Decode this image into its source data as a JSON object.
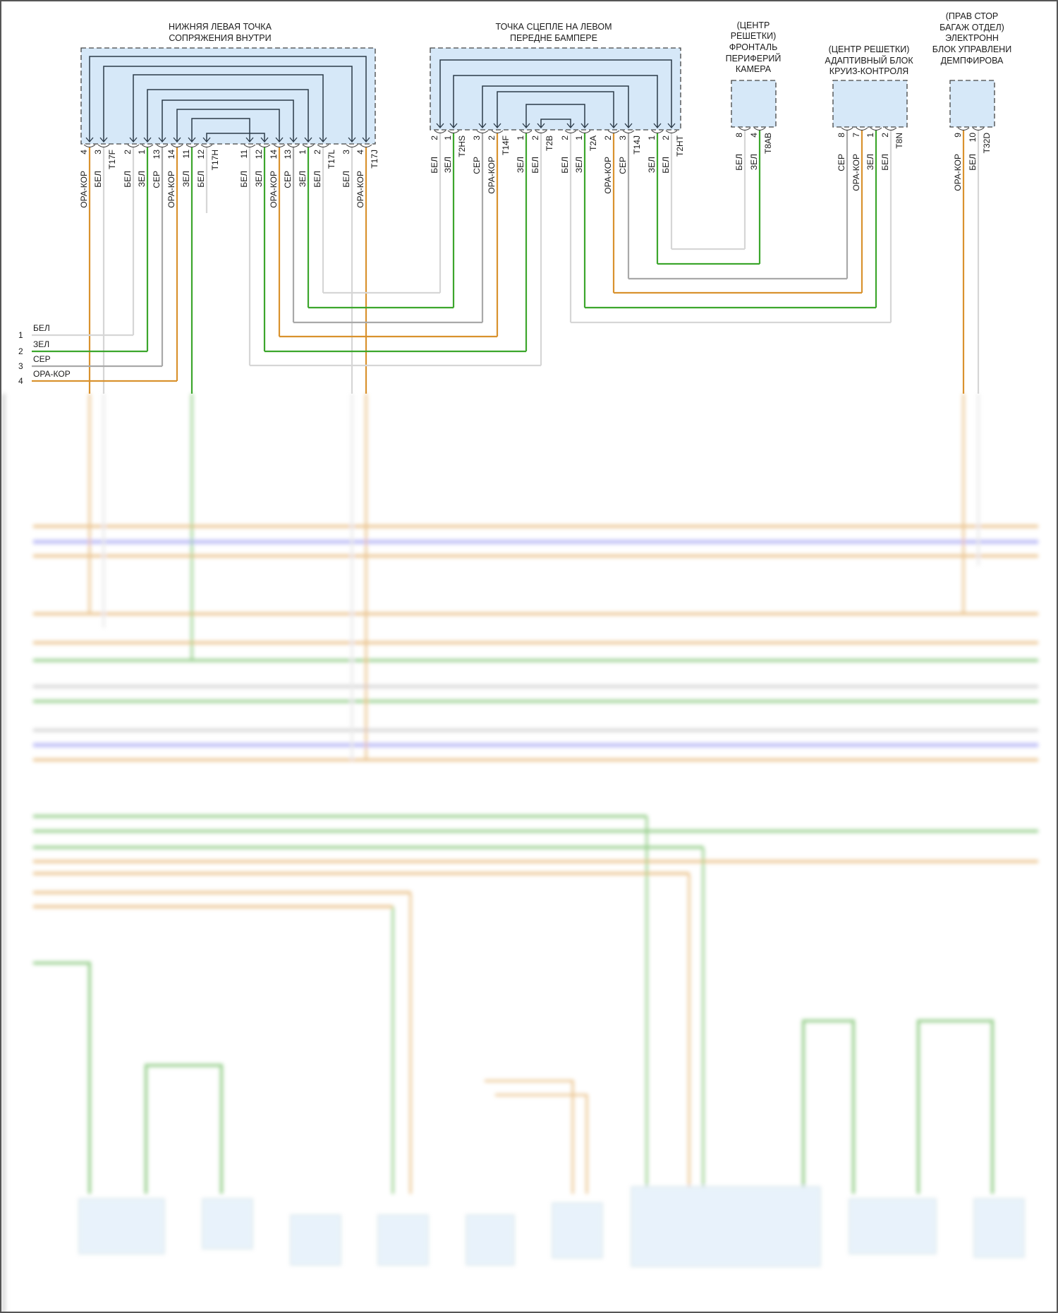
{
  "wire_colors": {
    "ОРА-КОР": "#d9922e",
    "ЗЕЛ": "#3ca62c",
    "БЕЛ": "#d6d6d6",
    "СЕР": "#a9a9a9"
  },
  "box_fill": "#d6e8f8",
  "connectors": [
    {
      "title": [
        "НИЖНЯЯ ЛЕВАЯ ТОЧКА",
        "СОПРЯЖЕНИЯ ВНУТРИ"
      ],
      "pins": [
        {
          "num": "4",
          "wire": "ОРА-КОР"
        },
        {
          "num": "3",
          "wire": "БЕЛ",
          "tag": "T17F"
        },
        {
          "num": "2",
          "wire": "БЕЛ"
        },
        {
          "num": "1",
          "wire": "ЗЕЛ"
        },
        {
          "num": "13",
          "wire": "СЕР"
        },
        {
          "num": "14",
          "wire": "ОРА-КОР"
        },
        {
          "num": "11",
          "wire": "ЗЕЛ"
        },
        {
          "num": "12",
          "wire": "БЕЛ",
          "tag": "T17H"
        },
        {
          "num": "11",
          "wire": "БЕЛ"
        },
        {
          "num": "12",
          "wire": "ЗЕЛ"
        },
        {
          "num": "14",
          "wire": "ОРА-КОР"
        },
        {
          "num": "13",
          "wire": "СЕР"
        },
        {
          "num": "1",
          "wire": "ЗЕЛ"
        },
        {
          "num": "2",
          "wire": "БЕЛ",
          "tag": "T17L"
        },
        {
          "num": "3",
          "wire": "БЕЛ"
        },
        {
          "num": "4",
          "wire": "ОРА-КОР",
          "tag": "T17J"
        }
      ]
    },
    {
      "title": [
        "ТОЧКА СЦЕПЛЕ НА ЛЕВОМ",
        "ПЕРЕДНЕ БАМПЕРЕ"
      ],
      "pins": [
        {
          "num": "2",
          "wire": "БЕЛ"
        },
        {
          "num": "1",
          "wire": "ЗЕЛ",
          "tag": "T2HS"
        },
        {
          "num": "3",
          "wire": "СЕР"
        },
        {
          "num": "2",
          "wire": "ОРА-КОР",
          "tag": "T14F"
        },
        {
          "num": "1",
          "wire": "ЗЕЛ"
        },
        {
          "num": "2",
          "wire": "БЕЛ",
          "tag": "T2B"
        },
        {
          "num": "2",
          "wire": "БЕЛ"
        },
        {
          "num": "1",
          "wire": "ЗЕЛ",
          "tag": "T2A"
        },
        {
          "num": "2",
          "wire": "ОРА-КОР"
        },
        {
          "num": "3",
          "wire": "СЕР",
          "tag": "T14J"
        },
        {
          "num": "1",
          "wire": "ЗЕЛ"
        },
        {
          "num": "2",
          "wire": "БЕЛ",
          "tag": "T2HT"
        }
      ]
    },
    {
      "title": [
        "(ЦЕНТР",
        "РЕШЕТКИ)",
        "ФРОНТАЛЬ",
        "ПЕРИФЕРИЙ",
        "КАМЕРА"
      ],
      "pins": [
        {
          "num": "8",
          "wire": "БЕЛ"
        },
        {
          "num": "4",
          "wire": "ЗЕЛ",
          "tag": "T8AB"
        }
      ]
    },
    {
      "title": [
        "(ЦЕНТР РЕШЕТКИ)",
        "АДАПТИВНЫЙ БЛОК",
        "КРУИЗ-КОНТРОЛЯ"
      ],
      "pins": [
        {
          "num": "8",
          "wire": "СЕР"
        },
        {
          "num": "7",
          "wire": "ОРА-КОР"
        },
        {
          "num": "1",
          "wire": "ЗЕЛ"
        },
        {
          "num": "2",
          "wire": "БЕЛ",
          "tag": "T8N"
        }
      ]
    },
    {
      "title": [
        "(ПРАВ СТОР",
        "БАГАЖ ОТДЕЛ)",
        "ЭЛЕКТРОНН",
        "БЛОК УПРАВЛЕНИ",
        "ДЕМПФИРОВА"
      ],
      "pins": [
        {
          "num": "9",
          "wire": "ОРА-КОР"
        },
        {
          "num": "10",
          "wire": "БЕЛ",
          "tag": "T32D"
        }
      ]
    }
  ],
  "legend": [
    {
      "num": "1",
      "wire": "БЕЛ"
    },
    {
      "num": "2",
      "wire": "ЗЕЛ"
    },
    {
      "num": "3",
      "wire": "СЕР"
    },
    {
      "num": "4",
      "wire": "ОРА-КОР"
    }
  ]
}
